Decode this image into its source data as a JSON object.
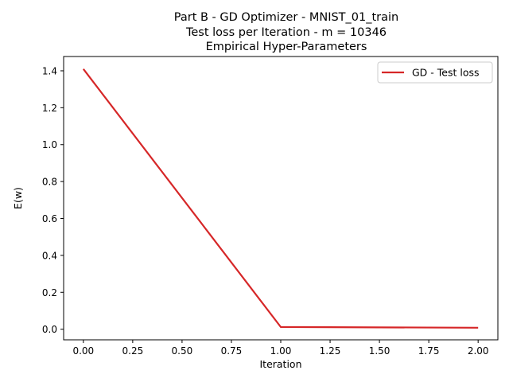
{
  "chart_data": {
    "type": "line",
    "title_lines": [
      "Part B - GD Optimizer - MNIST_01_train",
      "Test loss per Iteration - m = 10346",
      "Empirical Hyper-Parameters"
    ],
    "xlabel": "Iteration",
    "ylabel": "E(w)",
    "xlim": [
      -0.1,
      2.1
    ],
    "ylim": [
      -0.0575,
      1.4775
    ],
    "xticks": [
      0.0,
      0.25,
      0.5,
      0.75,
      1.0,
      1.25,
      1.5,
      1.75,
      2.0
    ],
    "xtick_labels": [
      "0.00",
      "0.25",
      "0.50",
      "0.75",
      "1.00",
      "1.25",
      "1.50",
      "1.75",
      "2.00"
    ],
    "yticks": [
      0.0,
      0.2,
      0.4,
      0.6,
      0.8,
      1.0,
      1.2,
      1.4
    ],
    "ytick_labels": [
      "0.0",
      "0.2",
      "0.4",
      "0.6",
      "0.8",
      "1.0",
      "1.2",
      "1.4"
    ],
    "grid": false,
    "legend_position": "top-right",
    "series": [
      {
        "name": "GD - Test loss",
        "color": "#d62728",
        "x": [
          0,
          1,
          2
        ],
        "y": [
          1.41,
          0.012,
          0.008
        ]
      }
    ]
  }
}
